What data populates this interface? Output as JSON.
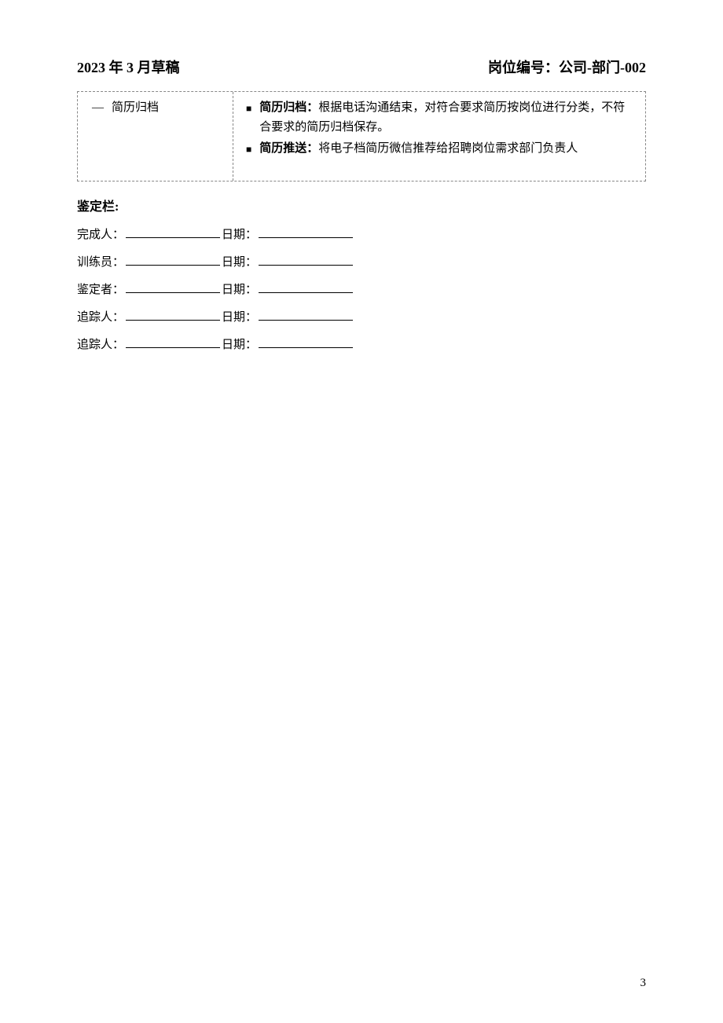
{
  "header": {
    "left": "2023 年 3 月草稿",
    "right": "岗位编号：公司-部门-002"
  },
  "table": {
    "left_item": "简历归档",
    "right_items": [
      {
        "bold": "简历归档：",
        "text": "根据电话沟通结束，对符合要求简历按岗位进行分类，不符合要求的简历归档保存。"
      },
      {
        "bold": "简历推送：",
        "text": "将电子档简历微信推荐给招聘岗位需求部门负责人"
      }
    ]
  },
  "verify": {
    "title": "鉴定栏:",
    "rows": [
      {
        "label1": "完成人：",
        "label2": "日期："
      },
      {
        "label1": "训练员：",
        "label2": "日期："
      },
      {
        "label1": "鉴定者：",
        "label2": "日期："
      },
      {
        "label1": "追踪人：",
        "label2": "日期："
      },
      {
        "label1": "追踪人：",
        "label2": "日期："
      }
    ]
  },
  "page_number": "3",
  "colors": {
    "text": "#000000",
    "background": "#ffffff",
    "dash_border": "#888888"
  }
}
